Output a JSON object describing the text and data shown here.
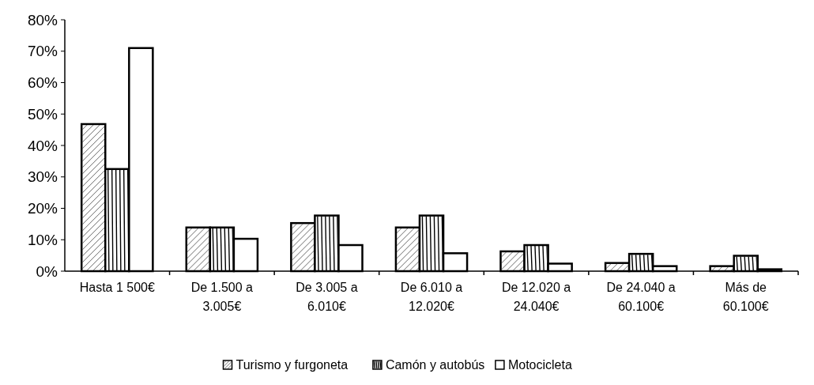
{
  "chart_data": {
    "type": "bar",
    "categories": [
      "Hasta 1 500€",
      "De 1.500 a 3.005€",
      "De 3.005 a 6.010€",
      "De 6.010 a 12.020€",
      "De 12.020 a 24.040€",
      "De 24.040 a 60.100€",
      "Más de 60.100€"
    ],
    "series": [
      {
        "name": "Turismo y furgoneta",
        "color": "#ffffff",
        "values": [
          46.8,
          13.9,
          15.3,
          13.9,
          6.3,
          2.6,
          1.6
        ]
      },
      {
        "name": "Camón y autobús",
        "color": "#ffffff",
        "values": [
          32.5,
          13.9,
          17.7,
          17.7,
          8.3,
          5.5,
          4.9
        ]
      },
      {
        "name": "Motocicleta",
        "color": "#ffffff",
        "values": [
          71,
          10.3,
          8.3,
          5.7,
          2.4,
          1.6,
          0.6
        ]
      }
    ],
    "ylim": [
      0,
      80
    ],
    "yticks": [
      {
        "value": 0,
        "label": "0%"
      },
      {
        "value": 10,
        "label": "10%"
      },
      {
        "value": 20,
        "label": "20%"
      },
      {
        "value": 30,
        "label": "30%"
      },
      {
        "value": 40,
        "label": "40%"
      },
      {
        "value": 50,
        "label": "50%"
      },
      {
        "value": 60,
        "label": "60%"
      },
      {
        "value": 70,
        "label": "70%"
      },
      {
        "value": 80,
        "label": "80%"
      }
    ],
    "legend": "bottom",
    "grid": false
  }
}
